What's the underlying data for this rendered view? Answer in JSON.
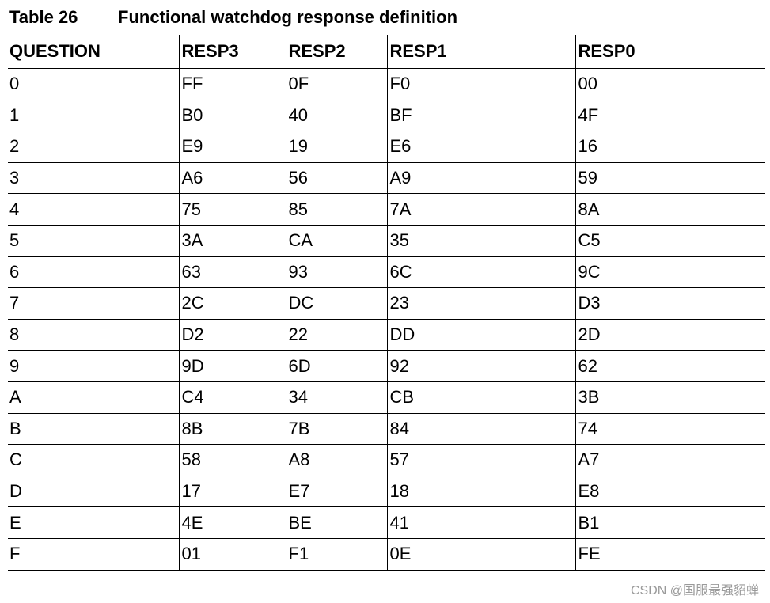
{
  "caption": {
    "number": "Table 26",
    "title": "Functional watchdog response definition"
  },
  "table": {
    "headers": [
      "QUESTION",
      "RESP3",
      "RESP2",
      "RESP1",
      "RESP0"
    ],
    "rows": [
      [
        "0",
        "FF",
        "0F",
        "F0",
        "00"
      ],
      [
        "1",
        "B0",
        "40",
        "BF",
        "4F"
      ],
      [
        "2",
        "E9",
        "19",
        "E6",
        "16"
      ],
      [
        "3",
        "A6",
        "56",
        "A9",
        "59"
      ],
      [
        "4",
        "75",
        "85",
        "7A",
        "8A"
      ],
      [
        "5",
        "3A",
        "CA",
        "35",
        "C5"
      ],
      [
        "6",
        "63",
        "93",
        "6C",
        "9C"
      ],
      [
        "7",
        "2C",
        "DC",
        "23",
        "D3"
      ],
      [
        "8",
        "D2",
        "22",
        "DD",
        "2D"
      ],
      [
        "9",
        "9D",
        "6D",
        "92",
        "62"
      ],
      [
        "A",
        "C4",
        "34",
        "CB",
        "3B"
      ],
      [
        "B",
        "8B",
        "7B",
        "84",
        "74"
      ],
      [
        "C",
        "58",
        "A8",
        "57",
        "A7"
      ],
      [
        "D",
        "17",
        "E7",
        "18",
        "E8"
      ],
      [
        "E",
        "4E",
        "BE",
        "41",
        "B1"
      ],
      [
        "F",
        "01",
        "F1",
        "0E",
        "FE"
      ]
    ]
  },
  "watermark": "CSDN @国服最强貂蝉"
}
